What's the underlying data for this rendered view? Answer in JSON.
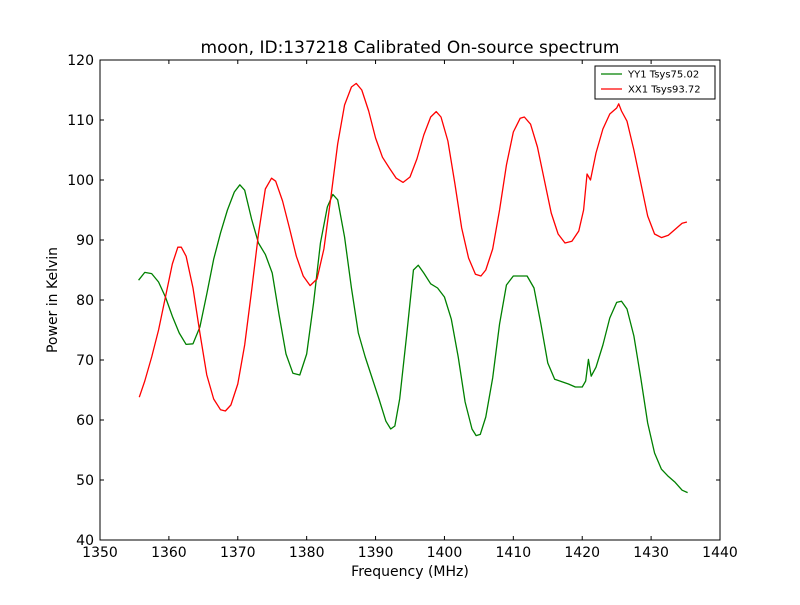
{
  "chart_data": {
    "type": "line",
    "title": "moon, ID:137218 Calibrated On-source spectrum",
    "xlabel": "Frequency (MHz)",
    "ylabel": "Power in Kelvin",
    "xlim": [
      1350,
      1440
    ],
    "ylim": [
      40,
      120
    ],
    "xticks": [
      1350,
      1360,
      1370,
      1380,
      1390,
      1400,
      1410,
      1420,
      1430,
      1440
    ],
    "yticks": [
      40,
      50,
      60,
      70,
      80,
      90,
      100,
      110,
      120
    ],
    "grid": false,
    "legend_position": "top-right",
    "series": [
      {
        "name": "YY1 Tsys75.02",
        "color": "#008000",
        "points": [
          [
            1355.6,
            83.3
          ],
          [
            1356.5,
            84.6
          ],
          [
            1357.5,
            84.4
          ],
          [
            1358.5,
            83
          ],
          [
            1359.5,
            80.5
          ],
          [
            1360.5,
            77.3
          ],
          [
            1361.5,
            74.5
          ],
          [
            1362.5,
            72.6
          ],
          [
            1363.5,
            72.7
          ],
          [
            1364.5,
            75.5
          ],
          [
            1365.5,
            81
          ],
          [
            1366.5,
            86.8
          ],
          [
            1367.5,
            91.2
          ],
          [
            1368.5,
            95
          ],
          [
            1369.5,
            98
          ],
          [
            1370.3,
            99.2
          ],
          [
            1371,
            98.3
          ],
          [
            1372,
            93.5
          ],
          [
            1373,
            89.5
          ],
          [
            1374,
            87.6
          ],
          [
            1375,
            84.5
          ],
          [
            1376,
            77.5
          ],
          [
            1377,
            71
          ],
          [
            1378,
            67.8
          ],
          [
            1379,
            67.5
          ],
          [
            1380,
            71
          ],
          [
            1381,
            79.5
          ],
          [
            1382,
            89.5
          ],
          [
            1383,
            95.5
          ],
          [
            1383.8,
            97.6
          ],
          [
            1384.5,
            96.7
          ],
          [
            1385.5,
            90.5
          ],
          [
            1386.5,
            82
          ],
          [
            1387.5,
            74.5
          ],
          [
            1388.5,
            70.5
          ],
          [
            1389.5,
            67
          ],
          [
            1390.5,
            63.5
          ],
          [
            1391.5,
            59.8
          ],
          [
            1392.2,
            58.5
          ],
          [
            1392.8,
            59
          ],
          [
            1393.5,
            63.5
          ],
          [
            1394.5,
            74
          ],
          [
            1395.5,
            85
          ],
          [
            1396.2,
            85.8
          ],
          [
            1397,
            84.5
          ],
          [
            1398,
            82.7
          ],
          [
            1399,
            82
          ],
          [
            1400,
            80.5
          ],
          [
            1401,
            76.8
          ],
          [
            1402,
            70.5
          ],
          [
            1403,
            63
          ],
          [
            1404,
            58.5
          ],
          [
            1404.6,
            57.4
          ],
          [
            1405.2,
            57.6
          ],
          [
            1406,
            60.5
          ],
          [
            1407,
            67
          ],
          [
            1408,
            76
          ],
          [
            1409,
            82.5
          ],
          [
            1410,
            84
          ],
          [
            1411,
            84
          ],
          [
            1412,
            84
          ],
          [
            1413,
            82
          ],
          [
            1414,
            76
          ],
          [
            1415,
            69.5
          ],
          [
            1416,
            66.8
          ],
          [
            1417,
            66.4
          ],
          [
            1418,
            66
          ],
          [
            1419,
            65.5
          ],
          [
            1420,
            65.5
          ],
          [
            1420.5,
            66.5
          ],
          [
            1420.9,
            70.1
          ],
          [
            1421.3,
            67.3
          ],
          [
            1422,
            68.8
          ],
          [
            1423,
            72.5
          ],
          [
            1424,
            77
          ],
          [
            1425,
            79.6
          ],
          [
            1425.7,
            79.8
          ],
          [
            1426.5,
            78.5
          ],
          [
            1427.5,
            74
          ],
          [
            1428.5,
            67
          ],
          [
            1429.5,
            59.5
          ],
          [
            1430.5,
            54.5
          ],
          [
            1431.5,
            51.8
          ],
          [
            1432.5,
            50.6
          ],
          [
            1433.5,
            49.6
          ],
          [
            1434.5,
            48.3
          ],
          [
            1435.3,
            47.9
          ]
        ]
      },
      {
        "name": "XX1 Tsys93.72",
        "color": "#ff0000",
        "points": [
          [
            1355.7,
            63.8
          ],
          [
            1356.5,
            66.5
          ],
          [
            1357.5,
            70.5
          ],
          [
            1358.5,
            75
          ],
          [
            1359.5,
            80.5
          ],
          [
            1360.5,
            86
          ],
          [
            1361.3,
            88.8
          ],
          [
            1361.8,
            88.8
          ],
          [
            1362.5,
            87.3
          ],
          [
            1363.5,
            82
          ],
          [
            1364.5,
            74.5
          ],
          [
            1365.5,
            67.5
          ],
          [
            1366.5,
            63.5
          ],
          [
            1367.5,
            61.7
          ],
          [
            1368.2,
            61.5
          ],
          [
            1369,
            62.5
          ],
          [
            1370,
            66
          ],
          [
            1371,
            72.5
          ],
          [
            1372,
            81.5
          ],
          [
            1373,
            91
          ],
          [
            1374,
            98.5
          ],
          [
            1374.9,
            100.3
          ],
          [
            1375.5,
            99.8
          ],
          [
            1376.5,
            96.5
          ],
          [
            1377.5,
            92
          ],
          [
            1378.5,
            87.3
          ],
          [
            1379.5,
            84
          ],
          [
            1380.5,
            82.4
          ],
          [
            1381.5,
            83.5
          ],
          [
            1382.5,
            88.5
          ],
          [
            1383.5,
            97
          ],
          [
            1384.5,
            106
          ],
          [
            1385.5,
            112.5
          ],
          [
            1386.5,
            115.5
          ],
          [
            1387.2,
            116.1
          ],
          [
            1388,
            115
          ],
          [
            1389,
            111.5
          ],
          [
            1390,
            107
          ],
          [
            1391,
            103.8
          ],
          [
            1392,
            102
          ],
          [
            1393,
            100.3
          ],
          [
            1394,
            99.6
          ],
          [
            1395,
            100.5
          ],
          [
            1396,
            103.5
          ],
          [
            1397,
            107.5
          ],
          [
            1398,
            110.5
          ],
          [
            1398.8,
            111.4
          ],
          [
            1399.5,
            110.5
          ],
          [
            1400.5,
            106.5
          ],
          [
            1401.5,
            99.5
          ],
          [
            1402.5,
            92
          ],
          [
            1403.5,
            87
          ],
          [
            1404.5,
            84.3
          ],
          [
            1405.3,
            84
          ],
          [
            1406,
            85
          ],
          [
            1407,
            88.5
          ],
          [
            1408,
            95
          ],
          [
            1409,
            102.5
          ],
          [
            1410,
            108
          ],
          [
            1411,
            110.3
          ],
          [
            1411.6,
            110.5
          ],
          [
            1412.5,
            109.3
          ],
          [
            1413.5,
            105.5
          ],
          [
            1414.5,
            100
          ],
          [
            1415.5,
            94.5
          ],
          [
            1416.5,
            91
          ],
          [
            1417.5,
            89.5
          ],
          [
            1418.5,
            89.8
          ],
          [
            1419.5,
            91.5
          ],
          [
            1420.2,
            95
          ],
          [
            1420.7,
            101
          ],
          [
            1421.2,
            100
          ],
          [
            1422,
            104.5
          ],
          [
            1423,
            108.5
          ],
          [
            1424,
            111
          ],
          [
            1425,
            112
          ],
          [
            1425.3,
            112.7
          ],
          [
            1425.7,
            111.5
          ],
          [
            1426.5,
            109.8
          ],
          [
            1427.5,
            105
          ],
          [
            1428.5,
            99.5
          ],
          [
            1429.5,
            94
          ],
          [
            1430.5,
            91
          ],
          [
            1431.5,
            90.4
          ],
          [
            1432.5,
            90.8
          ],
          [
            1433.5,
            91.8
          ],
          [
            1434.5,
            92.8
          ],
          [
            1435.2,
            93
          ]
        ]
      }
    ]
  }
}
